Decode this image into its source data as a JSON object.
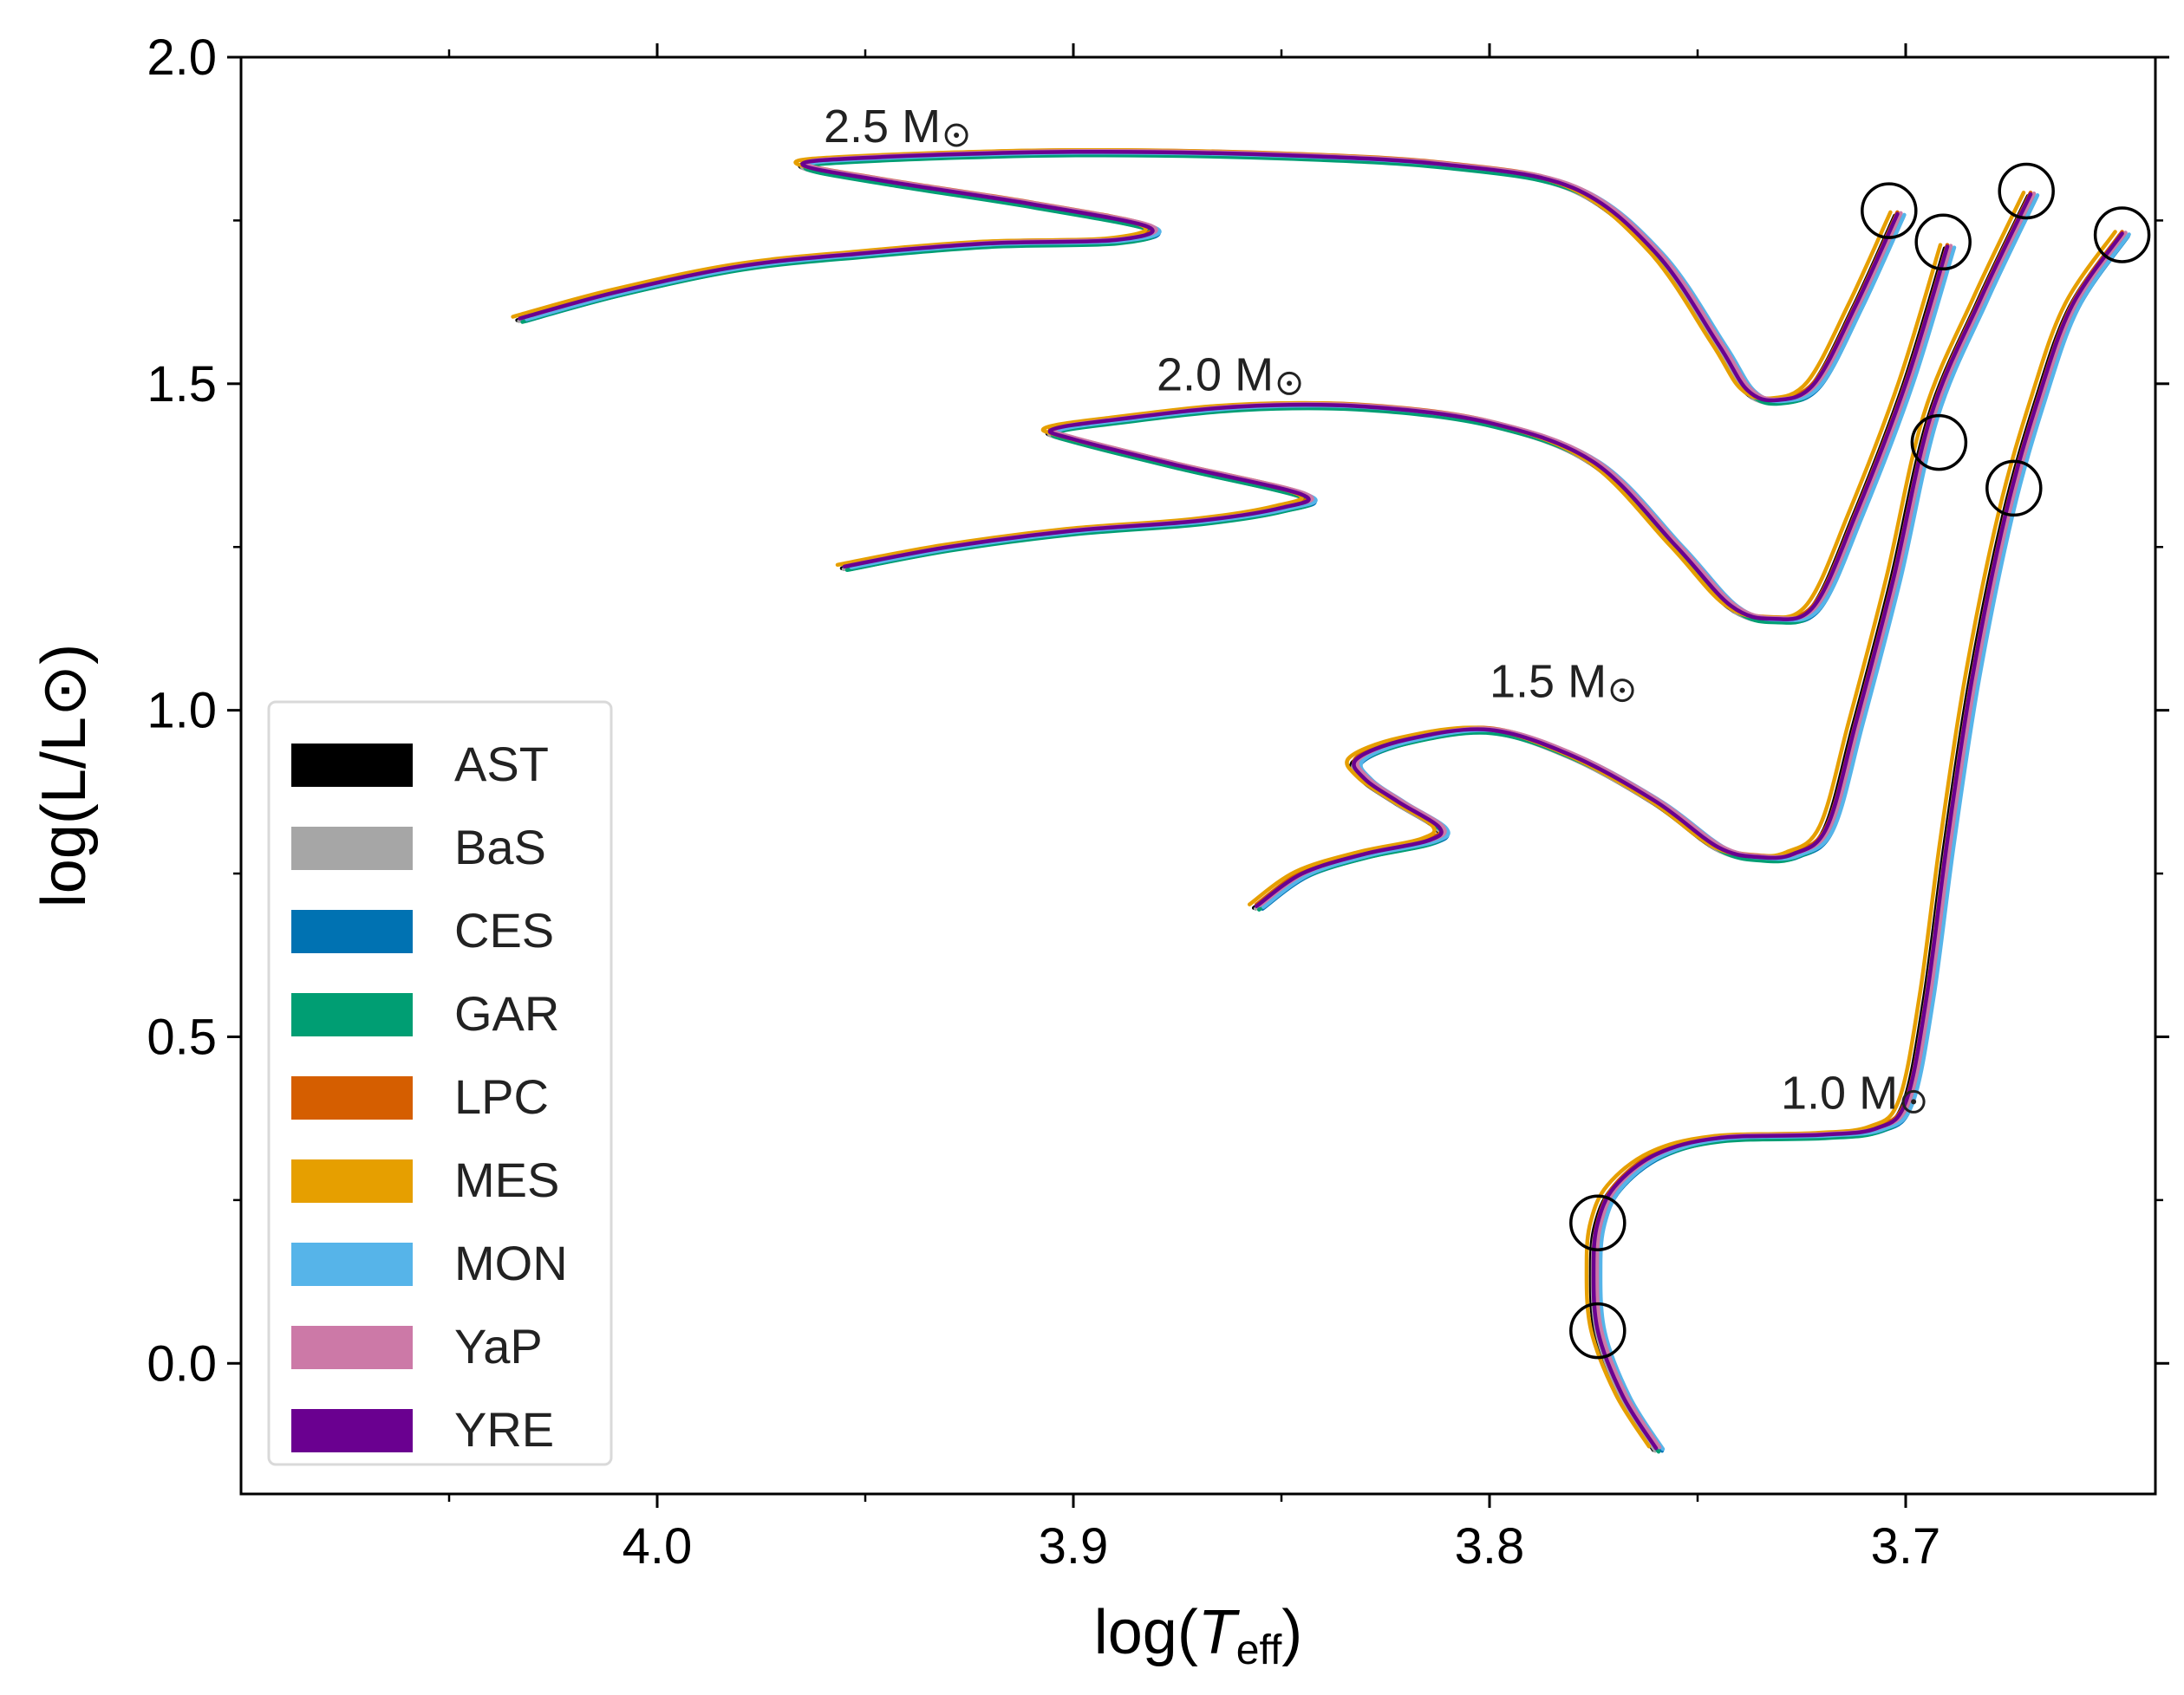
{
  "chart_data": {
    "type": "line",
    "title": "",
    "xlabel": "log(T_eff)",
    "xlabel_parts": {
      "prefix": "log(",
      "var": "T",
      "sub": "eff",
      "suffix": ")"
    },
    "ylabel": "log(L/L⊙)",
    "xlim": [
      4.1,
      3.64
    ],
    "ylim": [
      -0.2,
      2.0
    ],
    "x_inverted": true,
    "xticks": [
      4.0,
      3.9,
      3.8,
      3.7
    ],
    "xtick_labels": [
      "4.0",
      "3.9",
      "3.8",
      "3.7"
    ],
    "yticks": [
      0.0,
      0.5,
      1.0,
      1.5,
      2.0
    ],
    "ytick_labels": [
      "0.0",
      "0.5",
      "1.0",
      "1.5",
      "2.0"
    ],
    "grid": false,
    "legend_position": "lower-left",
    "codes": [
      "AST",
      "BaS",
      "CES",
      "GAR",
      "LPC",
      "MES",
      "MON",
      "YaP",
      "YRE"
    ],
    "colors": {
      "AST": "#000000",
      "BaS": "#a6a6a6",
      "CES": "#0072b2",
      "GAR": "#009e73",
      "LPC": "#d55e00",
      "MES": "#e69f00",
      "MON": "#56b4e9",
      "YaP": "#cc79a7",
      "YRE": "#6a0090"
    },
    "mass_labels": [
      {
        "text": "2.5 M",
        "x": 3.96,
        "y": 1.87
      },
      {
        "text": "2.0 M",
        "x": 3.88,
        "y": 1.49
      },
      {
        "text": "1.5 M",
        "x": 3.8,
        "y": 1.02
      },
      {
        "text": "1.0 M",
        "x": 3.73,
        "y": 0.39
      }
    ],
    "circles": [
      {
        "x": 3.704,
        "y": 1.765
      },
      {
        "x": 3.691,
        "y": 1.717
      },
      {
        "x": 3.671,
        "y": 1.795
      },
      {
        "x": 3.648,
        "y": 1.728
      },
      {
        "x": 3.692,
        "y": 1.41
      },
      {
        "x": 3.674,
        "y": 1.34
      },
      {
        "x": 3.774,
        "y": 0.215
      },
      {
        "x": 3.774,
        "y": 0.05
      }
    ],
    "tracks": [
      {
        "mass": "2.5",
        "points": [
          [
            4.033,
            1.6
          ],
          [
            4.01,
            1.64
          ],
          [
            3.98,
            1.68
          ],
          [
            3.95,
            1.7
          ],
          [
            3.92,
            1.715
          ],
          [
            3.89,
            1.72
          ],
          [
            3.882,
            1.74
          ],
          [
            3.91,
            1.775
          ],
          [
            3.945,
            1.81
          ],
          [
            3.965,
            1.835
          ],
          [
            3.95,
            1.846
          ],
          [
            3.9,
            1.855
          ],
          [
            3.85,
            1.85
          ],
          [
            3.81,
            1.835
          ],
          [
            3.78,
            1.8
          ],
          [
            3.76,
            1.7
          ],
          [
            3.745,
            1.56
          ],
          [
            3.738,
            1.49
          ],
          [
            3.731,
            1.475
          ],
          [
            3.722,
            1.5
          ],
          [
            3.712,
            1.62
          ],
          [
            3.702,
            1.76
          ]
        ]
      },
      {
        "mass": "2.0",
        "points": [
          [
            3.955,
            1.22
          ],
          [
            3.93,
            1.25
          ],
          [
            3.9,
            1.275
          ],
          [
            3.87,
            1.29
          ],
          [
            3.85,
            1.31
          ],
          [
            3.845,
            1.33
          ],
          [
            3.875,
            1.375
          ],
          [
            3.9,
            1.415
          ],
          [
            3.905,
            1.43
          ],
          [
            3.89,
            1.445
          ],
          [
            3.86,
            1.465
          ],
          [
            3.83,
            1.465
          ],
          [
            3.8,
            1.44
          ],
          [
            3.775,
            1.38
          ],
          [
            3.755,
            1.25
          ],
          [
            3.742,
            1.16
          ],
          [
            3.732,
            1.14
          ],
          [
            3.722,
            1.16
          ],
          [
            3.712,
            1.3
          ],
          [
            3.7,
            1.5
          ],
          [
            3.69,
            1.71
          ]
        ]
      },
      {
        "mass": "1.5",
        "points": [
          [
            3.856,
            0.7
          ],
          [
            3.845,
            0.75
          ],
          [
            3.83,
            0.78
          ],
          [
            3.815,
            0.8
          ],
          [
            3.812,
            0.82
          ],
          [
            3.822,
            0.86
          ],
          [
            3.83,
            0.895
          ],
          [
            3.832,
            0.925
          ],
          [
            3.82,
            0.955
          ],
          [
            3.8,
            0.97
          ],
          [
            3.78,
            0.93
          ],
          [
            3.76,
            0.86
          ],
          [
            3.745,
            0.79
          ],
          [
            3.735,
            0.775
          ],
          [
            3.727,
            0.78
          ],
          [
            3.719,
            0.82
          ],
          [
            3.712,
            0.98
          ],
          [
            3.703,
            1.2
          ],
          [
            3.694,
            1.45
          ],
          [
            3.682,
            1.63
          ],
          [
            3.67,
            1.79
          ]
        ]
      },
      {
        "mass": "1.0",
        "points": [
          [
            3.76,
            -0.13
          ],
          [
            3.768,
            -0.05
          ],
          [
            3.774,
            0.05
          ],
          [
            3.775,
            0.15
          ],
          [
            3.774,
            0.215
          ],
          [
            3.77,
            0.27
          ],
          [
            3.76,
            0.32
          ],
          [
            3.745,
            0.345
          ],
          [
            3.72,
            0.35
          ],
          [
            3.707,
            0.36
          ],
          [
            3.7,
            0.4
          ],
          [
            3.695,
            0.56
          ],
          [
            3.69,
            0.8
          ],
          [
            3.684,
            1.05
          ],
          [
            3.676,
            1.3
          ],
          [
            3.668,
            1.48
          ],
          [
            3.66,
            1.62
          ],
          [
            3.648,
            1.73
          ]
        ]
      }
    ],
    "legend": [
      {
        "label": "AST",
        "color": "#000000"
      },
      {
        "label": "BaS",
        "color": "#a6a6a6"
      },
      {
        "label": "CES",
        "color": "#0072b2"
      },
      {
        "label": "GAR",
        "color": "#009e73"
      },
      {
        "label": "LPC",
        "color": "#d55e00"
      },
      {
        "label": "MES",
        "color": "#e69f00"
      },
      {
        "label": "MON",
        "color": "#56b4e9"
      },
      {
        "label": "YaP",
        "color": "#cc79a7"
      },
      {
        "label": "YRE",
        "color": "#6a0090"
      }
    ]
  }
}
